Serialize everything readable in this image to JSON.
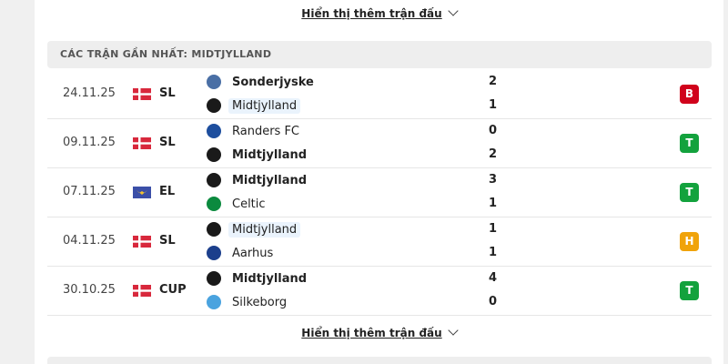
{
  "show_more": "Hiển thị thêm trận đấu",
  "section_title": "CÁC TRẬN GẦN NHẤT: MIDTJYLLAND",
  "colors": {
    "loss": "#d0021b",
    "win": "#13a23d",
    "draw": "#f0a30a"
  },
  "matches": [
    {
      "date": "24.11.25",
      "flag": "denmark",
      "comp": "SL",
      "home": "Sonderjyske",
      "home_logo": "#4a6fa5",
      "away": "Midtjylland",
      "away_logo": "#1a1a1a",
      "home_score": "2",
      "away_score": "1",
      "result": "B",
      "result_type": "loss",
      "bold": "home",
      "hl": "away"
    },
    {
      "date": "09.11.25",
      "flag": "denmark",
      "comp": "SL",
      "home": "Randers FC",
      "home_logo": "#1d4e9e",
      "away": "Midtjylland",
      "away_logo": "#1a1a1a",
      "home_score": "0",
      "away_score": "2",
      "result": "T",
      "result_type": "win",
      "bold": "away",
      "hl": ""
    },
    {
      "date": "07.11.25",
      "flag": "europe",
      "comp": "EL",
      "home": "Midtjylland",
      "home_logo": "#1a1a1a",
      "away": "Celtic",
      "away_logo": "#0b8a3e",
      "home_score": "3",
      "away_score": "1",
      "result": "T",
      "result_type": "win",
      "bold": "home",
      "hl": ""
    },
    {
      "date": "04.11.25",
      "flag": "denmark",
      "comp": "SL",
      "home": "Midtjylland",
      "home_logo": "#1a1a1a",
      "away": "Aarhus",
      "away_logo": "#1c3f8c",
      "home_score": "1",
      "away_score": "1",
      "result": "H",
      "result_type": "draw",
      "bold": "",
      "hl": "home"
    },
    {
      "date": "30.10.25",
      "flag": "denmark",
      "comp": "CUP",
      "home": "Midtjylland",
      "home_logo": "#1a1a1a",
      "away": "Silkeborg",
      "away_logo": "#4aa3df",
      "home_score": "4",
      "away_score": "0",
      "result": "T",
      "result_type": "win",
      "bold": "home",
      "hl": ""
    }
  ]
}
